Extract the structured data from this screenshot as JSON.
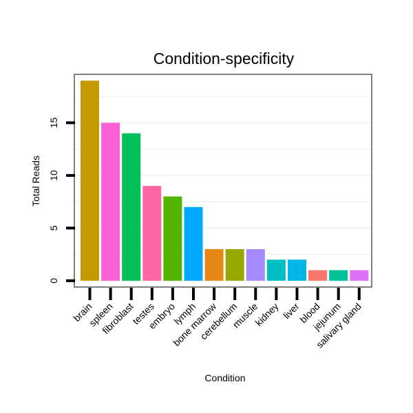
{
  "chart_data": {
    "type": "bar",
    "title": "Condition-specificity",
    "xlabel": "Condition",
    "ylabel": "Total Reads",
    "ylim": [
      -0.6,
      19.6
    ],
    "yticks": [
      0,
      5,
      10,
      15
    ],
    "grid": true,
    "categories": [
      "brain",
      "spleen",
      "fibroblast",
      "testes",
      "embryo",
      "lymph",
      "bone marrow",
      "cerebellum",
      "muscle",
      "kidney",
      "liver",
      "blood",
      "jejunum",
      "salivary gland"
    ],
    "values": [
      19,
      15,
      14,
      9,
      8,
      7,
      3,
      3,
      3,
      2,
      2,
      1,
      1,
      1
    ],
    "colors": [
      "#C49A00",
      "#FB61D7",
      "#00C05A",
      "#FF67A4",
      "#53B400",
      "#00A9FF",
      "#E68613",
      "#99A800",
      "#A58AFF",
      "#00BFC4",
      "#00B8E7",
      "#F8766D",
      "#00C19A",
      "#DF70F8"
    ]
  }
}
